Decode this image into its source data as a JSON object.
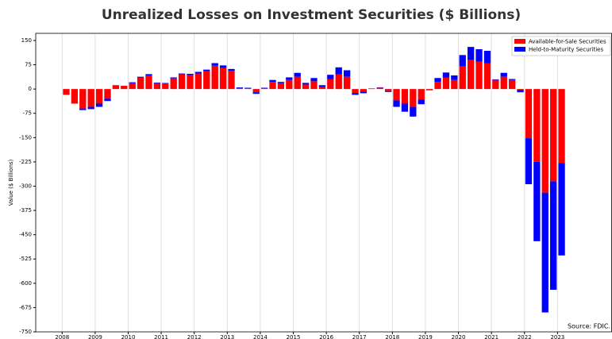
{
  "chart_data": {
    "type": "bar",
    "title": "Unrealized Losses on Investment Securities ($ Billions)",
    "y_label": "Value ($ Billions)",
    "annotation": "Source: FDIC.",
    "stacked": true,
    "grid": "x",
    "legend": "upper right",
    "x": [
      2008.125,
      2008.375,
      2008.625,
      2008.875,
      2009.125,
      2009.375,
      2009.625,
      2009.875,
      2010.125,
      2010.375,
      2010.625,
      2010.875,
      2011.125,
      2011.375,
      2011.625,
      2011.875,
      2012.125,
      2012.375,
      2012.625,
      2012.875,
      2013.125,
      2013.375,
      2013.625,
      2013.875,
      2014.125,
      2014.375,
      2014.625,
      2014.875,
      2015.125,
      2015.375,
      2015.625,
      2015.875,
      2016.125,
      2016.375,
      2016.625,
      2016.875,
      2017.125,
      2017.375,
      2017.625,
      2017.875,
      2018.125,
      2018.375,
      2018.625,
      2018.875,
      2019.125,
      2019.375,
      2019.625,
      2019.875,
      2020.125,
      2020.375,
      2020.625,
      2020.875,
      2021.125,
      2021.375,
      2021.625,
      2021.875,
      2022.125,
      2022.375,
      2022.625,
      2022.875,
      2023.125
    ],
    "series": [
      {
        "name": "Available-for-Sale Securities",
        "color": "#ff0000",
        "values": [
          -18,
          -45,
          -60,
          -55,
          -45,
          -30,
          12,
          10,
          18,
          35,
          42,
          18,
          18,
          33,
          45,
          43,
          48,
          55,
          72,
          65,
          56,
          3,
          2,
          -10,
          2,
          22,
          18,
          28,
          38,
          14,
          24,
          6,
          30,
          45,
          38,
          -12,
          -8,
          1,
          4,
          -6,
          -35,
          -45,
          -55,
          -32,
          -3,
          22,
          35,
          28,
          70,
          90,
          85,
          80,
          28,
          38,
          28,
          -2,
          -152,
          -225,
          -320,
          -285,
          -228
        ]
      },
      {
        "name": "Held-to-Maturity Securities",
        "color": "#0000ff",
        "values": [
          0,
          0,
          -5,
          -7,
          -10,
          -7,
          0,
          0,
          3,
          3,
          4,
          2,
          1,
          3,
          3,
          4,
          5,
          5,
          8,
          8,
          6,
          2,
          2,
          -5,
          2,
          6,
          4,
          8,
          12,
          5,
          10,
          6,
          14,
          22,
          20,
          -6,
          -5,
          1,
          1,
          -3,
          -20,
          -25,
          -30,
          -15,
          -1,
          12,
          16,
          14,
          35,
          40,
          38,
          38,
          2,
          12,
          3,
          -8,
          -142,
          -245,
          -370,
          -335,
          -286
        ]
      }
    ],
    "xlim": [
      2007.2,
      2024.65
    ],
    "xticks": [
      2008,
      2009,
      2010,
      2011,
      2012,
      2013,
      2014,
      2015,
      2016,
      2017,
      2018,
      2019,
      2020,
      2021,
      2022,
      2023
    ],
    "ylim": [
      -750,
      172
    ],
    "yticks": [
      150,
      75,
      0,
      -75,
      -150,
      -225,
      -300,
      -375,
      -450,
      -525,
      -600,
      -675,
      -750
    ]
  }
}
